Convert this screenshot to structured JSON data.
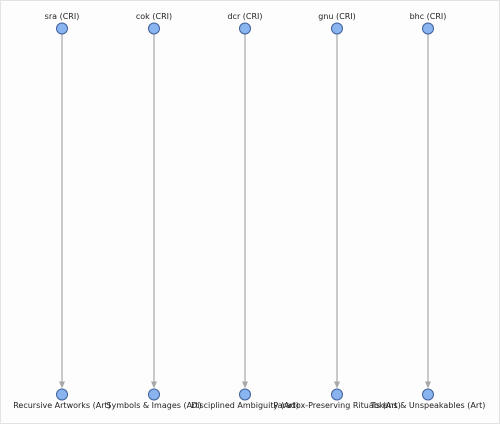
{
  "diagram": {
    "sources": [
      {
        "label": "sra (CRI)"
      },
      {
        "label": "cok (CRI)"
      },
      {
        "label": "dcr (CRI)"
      },
      {
        "label": "gnu (CRI)"
      },
      {
        "label": "bhc (CRI)"
      }
    ],
    "targets": [
      {
        "label": "Recursive Artworks (Art)"
      },
      {
        "label": "Symbols & Images (Art)"
      },
      {
        "label": "Disciplined Ambiguity (Art)"
      },
      {
        "label": "Paradox-Preserving Rituals (Art)"
      },
      {
        "label": "Tokens & Unspeakables (Art)"
      }
    ],
    "edges": [
      {
        "from": 0,
        "to": 0
      },
      {
        "from": 1,
        "to": 1
      },
      {
        "from": 2,
        "to": 2
      },
      {
        "from": 3,
        "to": 3
      },
      {
        "from": 4,
        "to": 4
      }
    ],
    "colors": {
      "node_fill": "#8ab4f0",
      "node_stroke": "#3f5f9a",
      "edge": "#a8a8a8",
      "label": "#222222"
    }
  }
}
